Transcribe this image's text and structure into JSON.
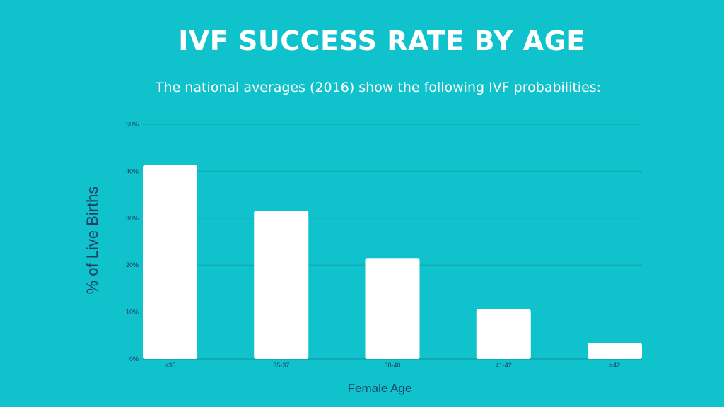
{
  "header": {
    "title": "IVF SUCCESS RATE BY AGE",
    "subtitle": "The national averages (2016) show the following IVF probabilities:"
  },
  "colors": {
    "background": "#0fc2cc",
    "bar": "#ffffff",
    "grid": "#12a2ad",
    "axis_text": "#1f3d63"
  },
  "chart_data": {
    "type": "bar",
    "categories": [
      "<35",
      "35-37",
      "38-40",
      "41-42",
      ">42"
    ],
    "values": [
      41.3,
      31.6,
      21.5,
      10.6,
      3.4
    ],
    "xlabel": "Female Age",
    "ylabel": "% of Live Births",
    "ylim": [
      0,
      50
    ],
    "yticks": [
      0,
      10,
      20,
      30,
      40,
      50
    ],
    "ytick_labels": [
      "0%",
      "10%",
      "20%",
      "30%",
      "40%",
      "50%"
    ],
    "grid": true
  }
}
